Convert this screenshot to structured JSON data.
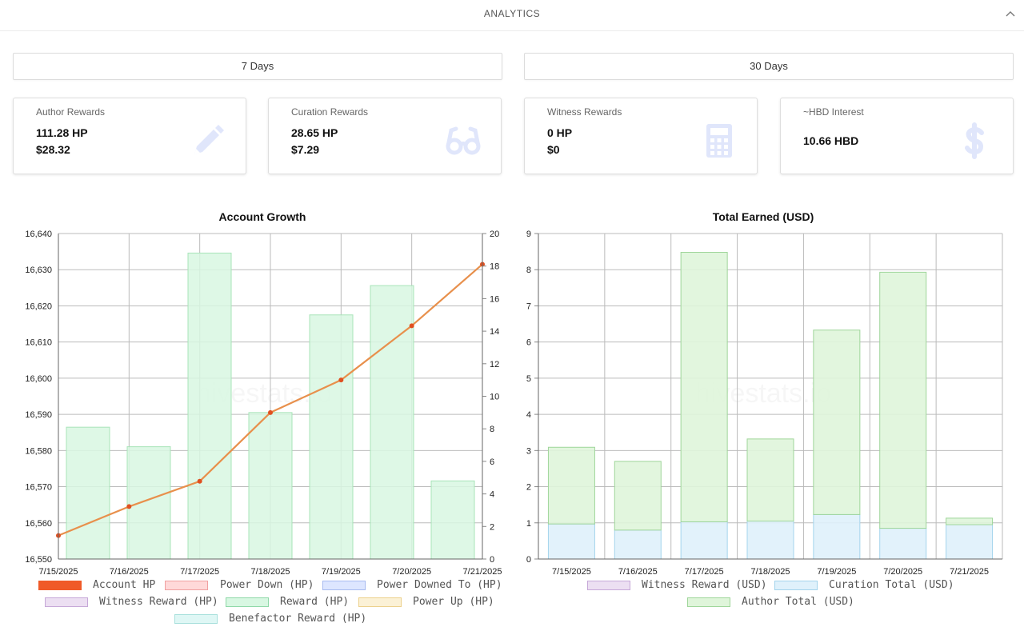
{
  "header": {
    "title": "ANALYTICS"
  },
  "range_buttons": {
    "seven_days": "7 Days",
    "thirty_days": "30 Days"
  },
  "cards": [
    {
      "label": "Author Rewards",
      "value1": "111.28 HP",
      "value2": "$28.32",
      "icon": "pencil-icon"
    },
    {
      "label": "Curation Rewards",
      "value1": "28.65 HP",
      "value2": "$7.29",
      "icon": "glasses-icon"
    },
    {
      "label": "Witness Rewards",
      "value1": "0 HP",
      "value2": "$0",
      "icon": "calculator-icon"
    },
    {
      "label": "~HBD Interest",
      "value1": "10.66 HBD",
      "value2": "",
      "icon": "dollar-icon"
    }
  ],
  "colors": {
    "icon": "#e0e6fb",
    "line": "#e8904c",
    "point": "#e05020",
    "reward_fill": "#d8f7e2",
    "reward_border": "#a8e4b8",
    "grid": "#bbbbbb"
  },
  "watermark": "hivestats.io",
  "chart_data": [
    {
      "type": "bar",
      "title": "Account Growth",
      "categories": [
        "7/15/2025",
        "7/16/2025",
        "7/17/2025",
        "7/18/2025",
        "7/19/2025",
        "7/20/2025",
        "7/21/2025"
      ],
      "y_left_ticks": [
        "16,550",
        "16,560",
        "16,570",
        "16,580",
        "16,590",
        "16,600",
        "16,610",
        "16,620",
        "16,630",
        "16,640"
      ],
      "y_right_ticks": [
        "0",
        "2",
        "4",
        "6",
        "8",
        "10",
        "12",
        "14",
        "16",
        "18",
        "20"
      ],
      "ylim_left": [
        16550,
        16640
      ],
      "ylim_right": [
        0,
        20
      ],
      "series": [
        {
          "name": "Account HP",
          "kind": "line",
          "axis": "left",
          "values": [
            16556.5,
            16564.5,
            16571.5,
            16590.5,
            16599.5,
            16614.5,
            16631.5
          ],
          "color": "#e8904c"
        },
        {
          "name": "Reward (HP)",
          "kind": "bar",
          "axis": "right",
          "values": [
            8.1,
            6.9,
            18.8,
            9.0,
            15.0,
            16.8,
            4.8
          ],
          "color": "#d8f7e2"
        }
      ],
      "legend": [
        {
          "name": "Account HP",
          "fill": "#f05a28",
          "border": "#f05a28"
        },
        {
          "name": "Power Down (HP)",
          "fill": "#ffd9d9",
          "border": "#f0a0a0"
        },
        {
          "name": "Power Downed To (HP)",
          "fill": "#dde6ff",
          "border": "#a8bbf0"
        },
        {
          "name": "Witness Reward (HP)",
          "fill": "#ecdff2",
          "border": "#c6a8d8"
        },
        {
          "name": "Reward (HP)",
          "fill": "#d8f7e2",
          "border": "#8fd8a8"
        },
        {
          "name": "Power Up (HP)",
          "fill": "#fbf1d6",
          "border": "#ecd08c"
        },
        {
          "name": "Benefactor Reward (HP)",
          "fill": "#dff7f5",
          "border": "#a8e0dc"
        }
      ],
      "legend_position": "bottom",
      "grid": true
    },
    {
      "type": "bar",
      "title": "Total Earned (USD)",
      "categories": [
        "7/15/2025",
        "7/16/2025",
        "7/17/2025",
        "7/18/2025",
        "7/19/2025",
        "7/20/2025",
        "7/21/2025"
      ],
      "y_ticks": [
        "0",
        "1",
        "2",
        "3",
        "4",
        "5",
        "6",
        "7",
        "8",
        "9"
      ],
      "ylim": [
        0,
        9
      ],
      "stacked": true,
      "series": [
        {
          "name": "Witness Reward (USD)",
          "values": [
            0,
            0,
            0,
            0,
            0,
            0,
            0
          ],
          "color": "#ecdff2"
        },
        {
          "name": "Curation Total (USD)",
          "values": [
            0.97,
            0.8,
            1.03,
            1.05,
            1.23,
            0.85,
            0.95
          ],
          "color": "#dff1fb"
        },
        {
          "name": "Author Total (USD)",
          "values": [
            2.12,
            1.9,
            7.45,
            2.27,
            5.1,
            7.08,
            0.18
          ],
          "color": "#dff5da"
        }
      ],
      "legend": [
        {
          "name": "Witness Reward (USD)",
          "fill": "#ecdff2",
          "border": "#c6a8d8"
        },
        {
          "name": "Curation Total (USD)",
          "fill": "#dff1fb",
          "border": "#a4d4ec"
        },
        {
          "name": "Author Total (USD)",
          "fill": "#dff5da",
          "border": "#9fd69a"
        }
      ],
      "legend_position": "bottom",
      "grid": true
    }
  ]
}
